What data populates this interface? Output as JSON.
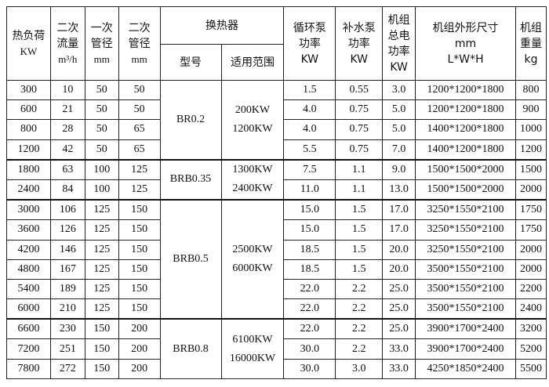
{
  "headers": {
    "heat_load": [
      "热负荷",
      "KW"
    ],
    "secondary_flow": [
      "二次",
      "流量",
      "m³/h"
    ],
    "primary_pipe": [
      "一次",
      "管径",
      "mm"
    ],
    "secondary_pipe": [
      "二次",
      "管径",
      "mm"
    ],
    "exchanger": "换热器",
    "model": "型号",
    "range": "适用范围",
    "circ_pump": [
      "循环泵",
      "功率",
      "KW"
    ],
    "makeup_pump": [
      "补水泵",
      "功率",
      "KW"
    ],
    "total_power": [
      "机组",
      "总电",
      "功率",
      "KW"
    ],
    "dimensions": [
      "机组外形尺寸",
      "mm",
      "L*W*H"
    ],
    "weight": [
      "机组",
      "重量",
      "kg"
    ]
  },
  "groups": [
    {
      "model": "BR0.2",
      "range": [
        "200KW",
        "1200KW"
      ],
      "rows": [
        [
          "300",
          "10",
          "50",
          "50",
          "1.5",
          "0.55",
          "3.0",
          "1200*1200*1800",
          "800"
        ],
        [
          "600",
          "21",
          "50",
          "50",
          "4.0",
          "0.75",
          "5.0",
          "1200*1200*1800",
          "900"
        ],
        [
          "800",
          "28",
          "50",
          "65",
          "4.0",
          "0.75",
          "5.0",
          "1400*1200*1800",
          "1000"
        ],
        [
          "1200",
          "42",
          "50",
          "65",
          "5.5",
          "0.75",
          "7.0",
          "1400*1200*1800",
          "1200"
        ]
      ]
    },
    {
      "model": "BRB0.35",
      "range": [
        "1300KW",
        "2400KW"
      ],
      "rows": [
        [
          "1800",
          "63",
          "100",
          "125",
          "7.5",
          "1.1",
          "9.0",
          "1500*1500*2000",
          "1500"
        ],
        [
          "2400",
          "84",
          "100",
          "125",
          "11.0",
          "1.1",
          "13.0",
          "1500*1500*2000",
          "2000"
        ]
      ]
    },
    {
      "model": "BRB0.5",
      "range": [
        "2500KW",
        "6000KW"
      ],
      "rows": [
        [
          "3000",
          "106",
          "125",
          "150",
          "15.0",
          "1.5",
          "17.0",
          "3250*1550*2100",
          "1750"
        ],
        [
          "3600",
          "126",
          "125",
          "150",
          "15.0",
          "1.5",
          "17.0",
          "3250*1550*2100",
          "1750"
        ],
        [
          "4200",
          "146",
          "125",
          "150",
          "18.5",
          "1.5",
          "20.0",
          "3250*1550*2100",
          "2000"
        ],
        [
          "4800",
          "167",
          "125",
          "150",
          "18.5",
          "1.5",
          "20.0",
          "3500*1550*2100",
          "2000"
        ],
        [
          "5400",
          "189",
          "125",
          "150",
          "22.0",
          "2.2",
          "25.0",
          "3500*1550*2100",
          "2200"
        ],
        [
          "6000",
          "210",
          "125",
          "150",
          "22.0",
          "2.2",
          "25.0",
          "3500*1550*2100",
          "2400"
        ]
      ]
    },
    {
      "model": "BRB0.8",
      "range": [
        "6100KW",
        "16000KW"
      ],
      "rows": [
        [
          "6600",
          "230",
          "150",
          "200",
          "22.0",
          "2.2",
          "25.0",
          "3900*1700*2400",
          "3200"
        ],
        [
          "7200",
          "251",
          "150",
          "200",
          "30.0",
          "2.2",
          "33.0",
          "3900*1700*2400",
          "5200"
        ],
        [
          "7800",
          "272",
          "150",
          "200",
          "30.0",
          "3.0",
          "33.0",
          "4250*1850*2400",
          "5500"
        ]
      ]
    }
  ]
}
